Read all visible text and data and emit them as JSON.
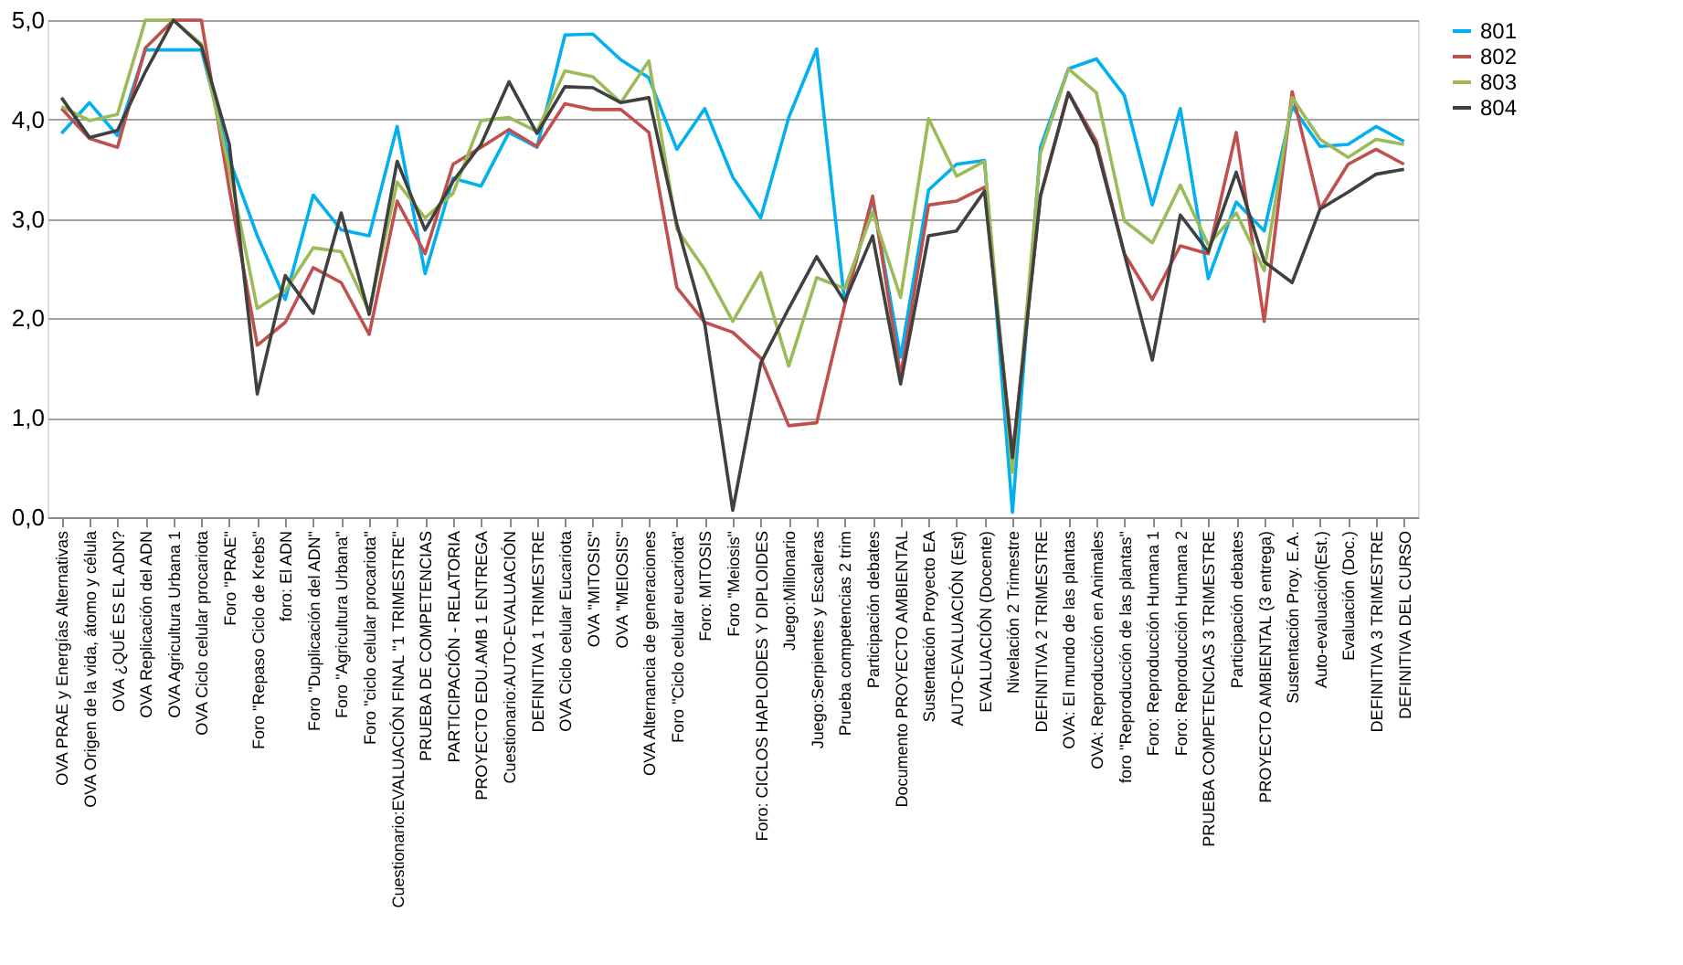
{
  "chart_data": {
    "type": "line",
    "categories": [
      "OVA PRAE y Energías Alternativas",
      "OVA Origen de la vida, átomo y célula",
      "OVA ¿QUÉ ES EL ADN?",
      "OVA Replicación del ADN",
      "OVA Agricultura Urbana 1",
      "OVA Ciclo celular procariota",
      "Foro \"PRAE\"",
      "Foro \"Repaso Ciclo de Krebs\"",
      "foro: El ADN",
      "Foro \"Duplicación del ADN\"",
      "Foro \"Agricultura Urbana\"",
      "Foro \"ciclo celular procariota\"",
      "Cuestionario:EVALUACIÓN FINAL \"1 TRIMESTRE\"",
      "PRUEBA DE COMPETENCIAS",
      "PARTICIPACIÓN - RELATORIA",
      "PROYECTO EDU.AMB 1 ENTREGA",
      "Cuestionario:AUTO-EVALUACIÓN",
      "DEFINITIVA 1 TRIMESTRE",
      "OVA Ciclo celular Eucariota",
      "OVA \"MITOSIS\"",
      "OVA \"MEIOSIS\"",
      "OVA Alternancia de generaciones",
      "Foro \"Ciclo celular eucariota\"",
      "Foro: MITOSIS",
      "Foro \"Meiosis\"",
      "Foro: CICLOS HAPLOIDES Y DIPLOIDES",
      "Juego:Millonario",
      "Juego:Serpientes y Escaleras",
      "Prueba competencias 2 trim",
      "Participación debates",
      "Documento PROYECTO AMBIENTAL",
      "Sustentación Proyecto EA",
      "AUTO-EVALUACIÓN (Est)",
      "EVALUACIÓN (Docente)",
      "Nivelación 2 Trimestre",
      "DEFINITIVA 2 TRIMESTRE",
      "OVA: El mundo de las plantas",
      "OVA: Reproducción en Animales",
      "foro \"Reproducción de las plantas\"",
      "Foro: Reproducción Humana 1",
      "Foro: Reproducción Humana 2",
      "PRUEBA COMPETENCIAS 3 TRIMESTRE",
      "Participación debates",
      "PROYECTO AMBIENTAL (3 entrega)",
      "Sustentación Proy. E.A.",
      "Auto-evaluación(Est.)",
      "Evaluación (Doc.)",
      "DEFINITIVA 3 TRIMESTRE",
      "DEFINITIVA DEL CURSO"
    ],
    "series": [
      {
        "name": "801",
        "color": "#00b0f0",
        "values": [
          3.86,
          4.17,
          3.84,
          4.7,
          4.7,
          4.7,
          3.6,
          2.83,
          2.19,
          3.24,
          2.89,
          2.83,
          3.93,
          2.45,
          3.41,
          3.33,
          3.87,
          3.72,
          4.85,
          4.86,
          4.6,
          4.42,
          3.7,
          4.11,
          3.42,
          3.01,
          4.02,
          4.71,
          2.16,
          3.2,
          1.61,
          3.29,
          3.55,
          3.59,
          0.05,
          3.72,
          4.51,
          4.61,
          4.24,
          3.14,
          4.11,
          2.4,
          3.17,
          2.88,
          4.13,
          3.73,
          3.75,
          3.93,
          3.78
        ]
      },
      {
        "name": "802",
        "color": "#c0504d",
        "values": [
          4.11,
          3.81,
          3.72,
          4.72,
          5.0,
          5.0,
          3.3,
          1.73,
          1.96,
          2.51,
          2.36,
          1.84,
          3.18,
          2.65,
          3.55,
          3.72,
          3.9,
          3.73,
          4.16,
          4.1,
          4.1,
          3.87,
          2.31,
          1.96,
          1.86,
          1.6,
          0.92,
          0.95,
          2.13,
          3.23,
          1.42,
          3.14,
          3.18,
          3.32,
          0.63,
          3.23,
          4.27,
          3.78,
          2.65,
          2.19,
          2.73,
          2.65,
          3.87,
          1.97,
          4.28,
          3.1,
          3.55,
          3.7,
          3.55
        ]
      },
      {
        "name": "803",
        "color": "#9bbb59",
        "values": [
          4.13,
          3.99,
          4.05,
          5.0,
          5.0,
          4.76,
          3.5,
          2.1,
          2.28,
          2.71,
          2.67,
          2.07,
          3.37,
          3.01,
          3.26,
          3.99,
          4.02,
          3.88,
          4.49,
          4.43,
          4.17,
          4.59,
          2.9,
          2.49,
          1.97,
          2.46,
          1.52,
          2.41,
          2.3,
          3.07,
          2.21,
          4.01,
          3.43,
          3.58,
          0.45,
          3.66,
          4.51,
          4.27,
          2.98,
          2.76,
          3.34,
          2.74,
          3.06,
          2.48,
          4.22,
          3.8,
          3.62,
          3.8,
          3.75
        ]
      },
      {
        "name": "804",
        "color": "#404040",
        "values": [
          4.22,
          3.82,
          3.89,
          4.48,
          5.0,
          4.74,
          3.75,
          1.24,
          2.43,
          2.05,
          3.06,
          2.04,
          3.58,
          2.89,
          3.38,
          3.75,
          4.38,
          3.86,
          4.33,
          4.32,
          4.17,
          4.22,
          2.95,
          1.94,
          0.07,
          1.55,
          2.1,
          2.62,
          2.17,
          2.83,
          1.34,
          2.83,
          2.88,
          3.28,
          0.6,
          3.23,
          4.27,
          3.73,
          2.65,
          1.58,
          3.04,
          2.67,
          3.47,
          2.57,
          2.36,
          3.1,
          3.27,
          3.45,
          3.5
        ]
      }
    ],
    "ylim": [
      0,
      5
    ],
    "yticks": [
      {
        "value": 0,
        "label": "0,0"
      },
      {
        "value": 1,
        "label": "1,0"
      },
      {
        "value": 2,
        "label": "2,0"
      },
      {
        "value": 3,
        "label": "3,0"
      },
      {
        "value": 4,
        "label": "4,0"
      },
      {
        "value": 5,
        "label": "5,0"
      }
    ],
    "grid": "y",
    "legend": "right",
    "marker": "none",
    "line_style": "solid"
  }
}
